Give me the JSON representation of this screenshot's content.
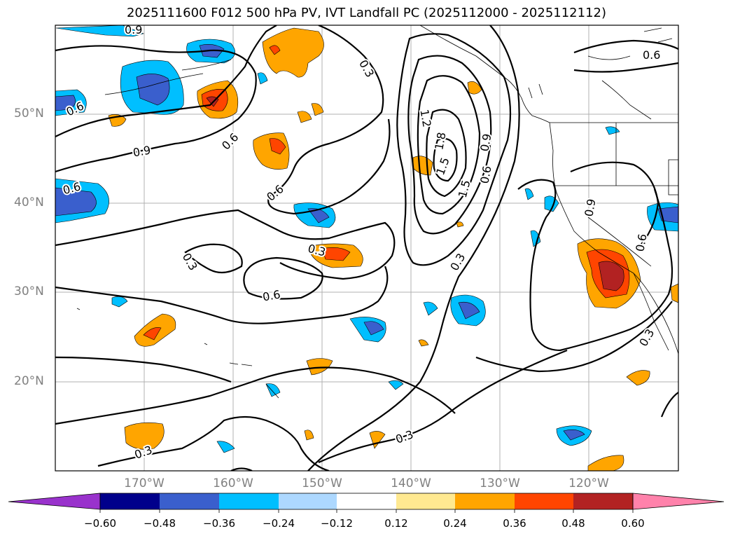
{
  "title": "2025111600 F012 500 hPa PV, IVT Landfall PC (2025112000 - 2025112112)",
  "lat_labels": [
    "50°N",
    "40°N",
    "30°N",
    "20°N"
  ],
  "lon_labels": [
    "170°W",
    "160°W",
    "150°W",
    "140°W",
    "130°W",
    "120°W"
  ],
  "contour_labels": [
    "0.3",
    "0.6",
    "0.9",
    "1.2",
    "1.5",
    "1.8",
    "0.3",
    "0.6",
    "0.9",
    "0.3",
    "0.6",
    "0.9",
    "0.3",
    "0.6",
    "0.3",
    "0.3",
    "0.6",
    "0.9",
    "0.3",
    "0.3",
    "0.3",
    "0.6",
    "0.3"
  ],
  "colorbar": {
    "colors": [
      "#9932cc",
      "#00008b",
      "#3a5fcd",
      "#00bfff",
      "#add8ff",
      "#ffffff",
      "#ffe991",
      "#ffa500",
      "#ff4500",
      "#b22222",
      "#ff82ab"
    ],
    "ticks": [
      "−0.60",
      "−0.48",
      "−0.36",
      "−0.24",
      "−0.12",
      "0.12",
      "0.24",
      "0.36",
      "0.48",
      "0.60"
    ]
  }
}
